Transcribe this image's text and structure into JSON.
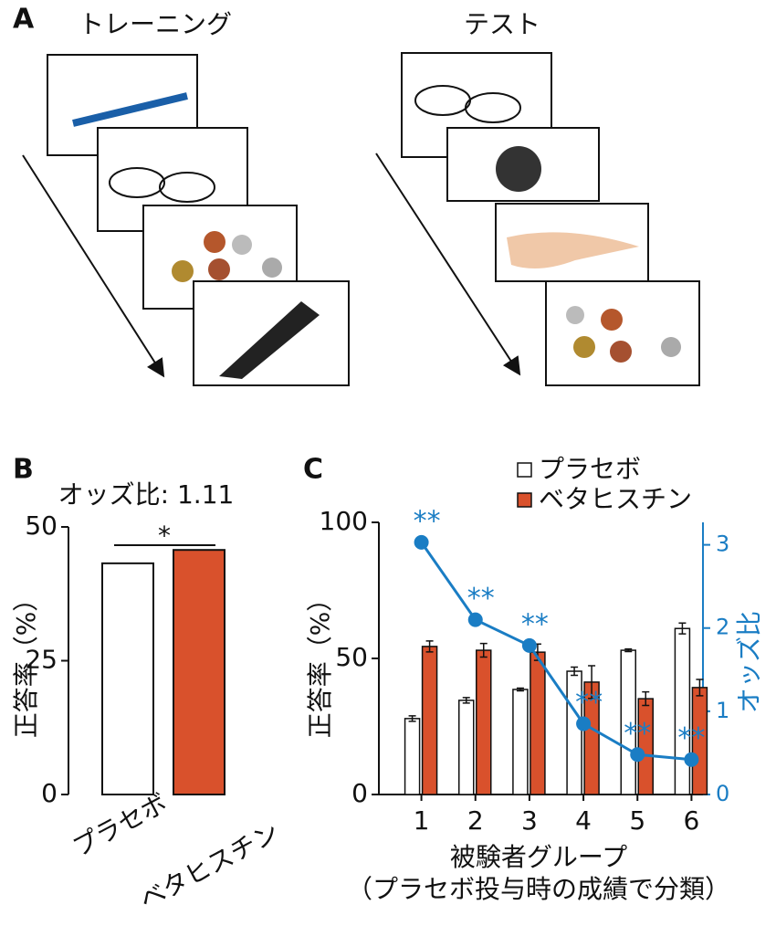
{
  "panel_a": {
    "label": "A",
    "training_title": "トレーニング",
    "test_title": "テスト"
  },
  "chart_data": [
    {
      "type": "bar",
      "panel_label": "B",
      "annotation": "オッズ比: 1.11",
      "significance": "*",
      "categories": [
        "プラセボ",
        "ベタヒスチン"
      ],
      "values": [
        43.2,
        45.7
      ],
      "colors": [
        "#ffffff",
        "#d9512c"
      ],
      "y_label": "正答率（%）",
      "ylim": [
        0,
        50
      ],
      "yticks": [
        0,
        25,
        50
      ]
    },
    {
      "type": "bar_line",
      "panel_label": "C",
      "categories": [
        "1",
        "2",
        "3",
        "4",
        "5",
        "6"
      ],
      "series": [
        {
          "name": "プラセボ",
          "color": "#ffffff",
          "values": [
            27.9,
            34.6,
            38.6,
            45.3,
            53,
            61
          ],
          "errors": [
            1,
            1,
            0.5,
            1.5,
            0.5,
            2
          ]
        },
        {
          "name": "ベタヒスチン",
          "color": "#d9512c",
          "values": [
            54.4,
            53,
            52.3,
            41.3,
            35.2,
            39.3
          ],
          "errors": [
            2,
            2.5,
            3,
            6,
            2.5,
            3
          ]
        },
        {
          "name": "オッズ比",
          "color": "#1a7dc4",
          "axis": "y2",
          "values": [
            3.03,
            2.1,
            1.79,
            0.85,
            0.48,
            0.42
          ],
          "significance": [
            "**",
            "**",
            "**",
            "**",
            "**",
            "**"
          ]
        }
      ],
      "x_label": "被験者グループ",
      "x_label_note": "（プラセボ投与時の成績で分類）",
      "y_label": "正答率（%）",
      "y2_label": "オッズ比",
      "ylim": [
        0,
        100
      ],
      "yticks": [
        0,
        50,
        100
      ],
      "y2lim": [
        0,
        3.27
      ],
      "y2ticks": [
        0,
        1,
        2,
        3
      ]
    }
  ]
}
